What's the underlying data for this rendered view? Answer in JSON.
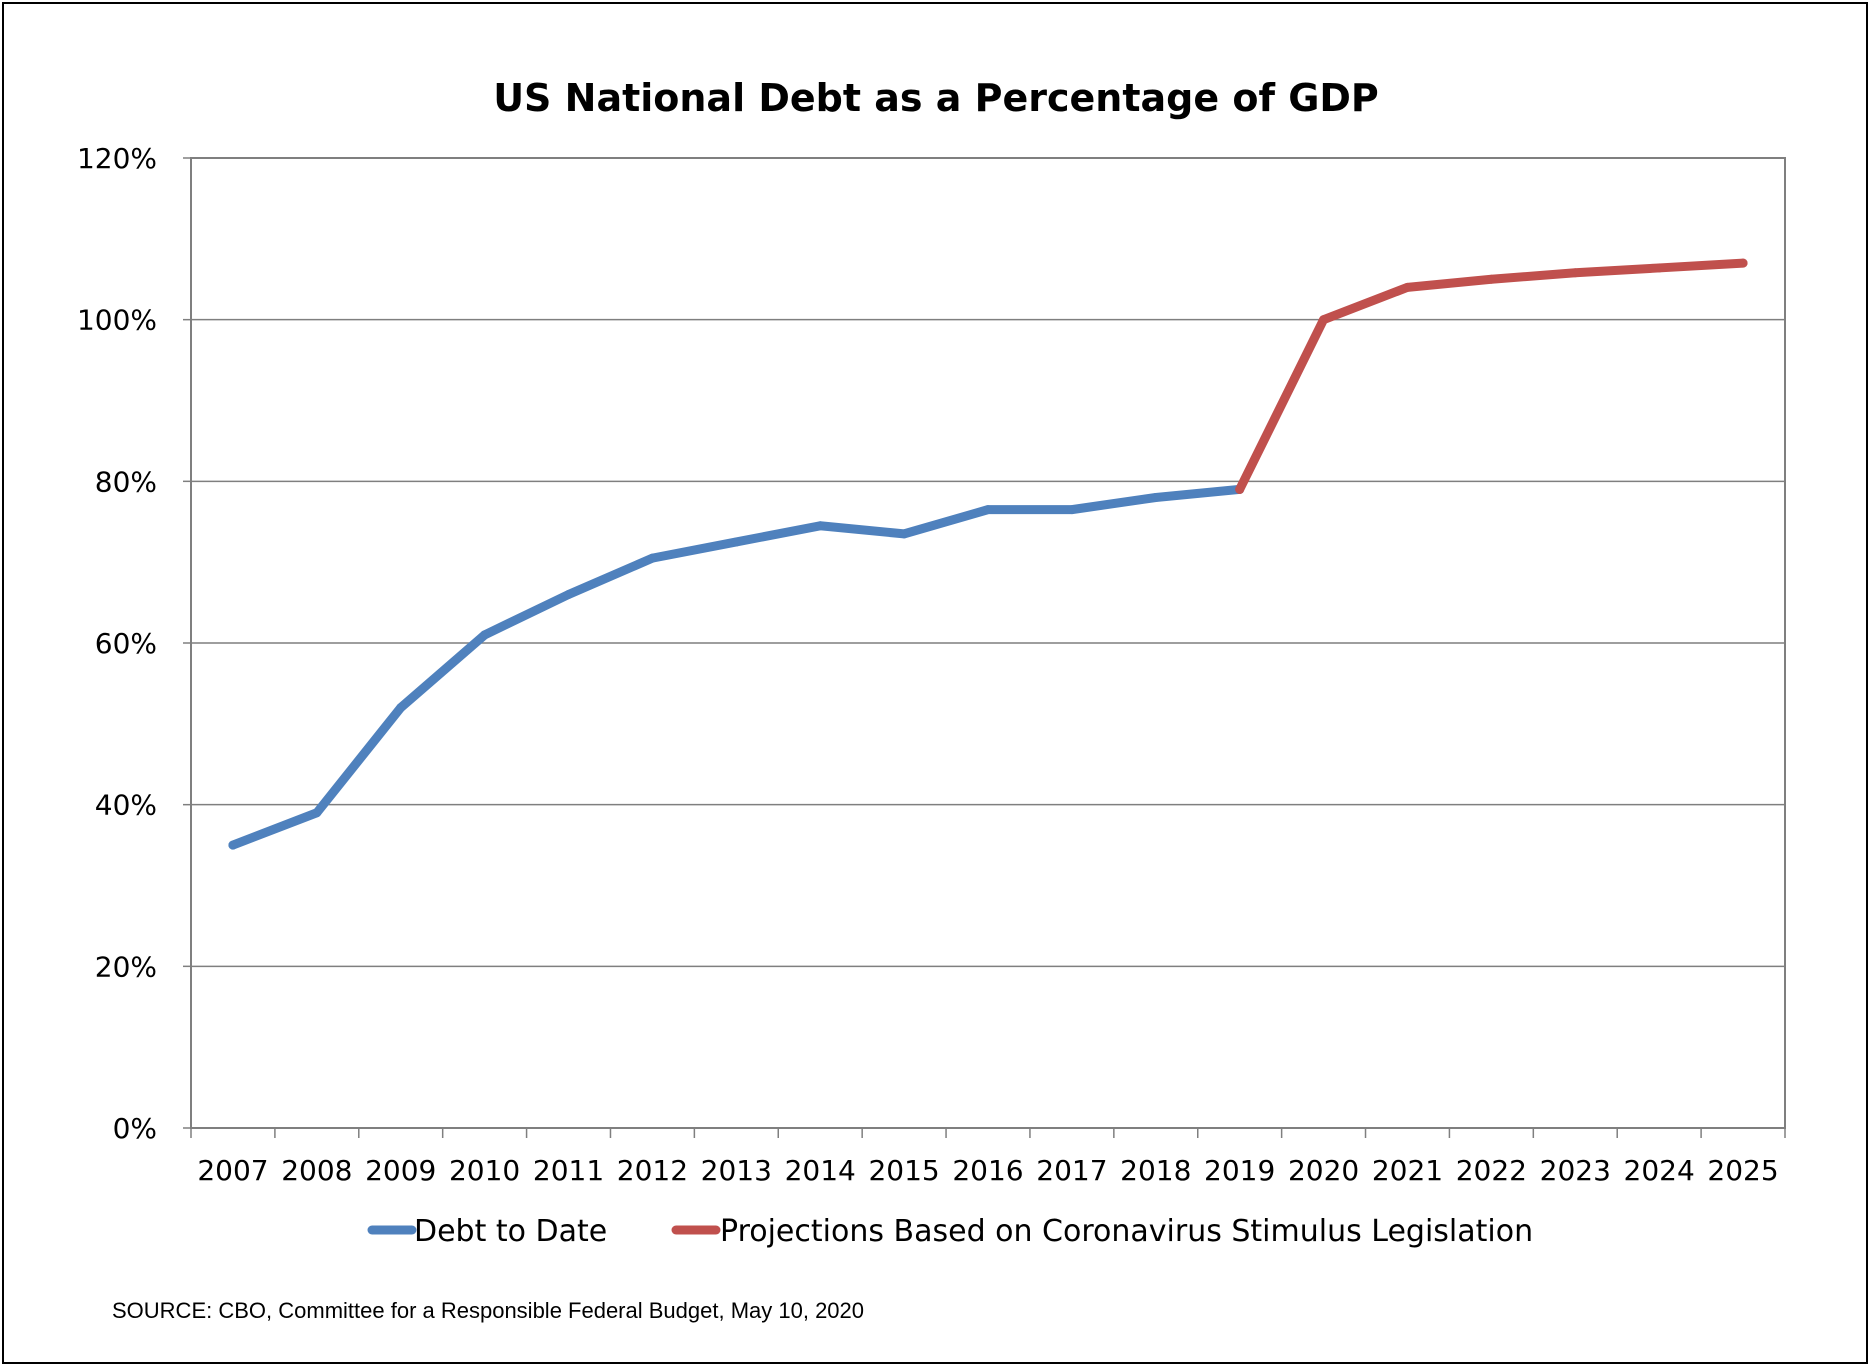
{
  "chart_data": {
    "type": "line",
    "title": "US National Debt as a Percentage of GDP",
    "xlabel": "",
    "ylabel": "",
    "categories": [
      "2007",
      "2008",
      "2009",
      "2010",
      "2011",
      "2012",
      "2013",
      "2014",
      "2015",
      "2016",
      "2017",
      "2018",
      "2019",
      "2020",
      "2021",
      "2022",
      "2023",
      "2024",
      "2025"
    ],
    "y_tick_labels": [
      "0%",
      "20%",
      "40%",
      "60%",
      "80%",
      "100%",
      "120%"
    ],
    "y_ticks": [
      0,
      20,
      40,
      60,
      80,
      100,
      120
    ],
    "ylim": [
      0,
      120
    ],
    "grid": true,
    "legend_position": "bottom",
    "series": [
      {
        "name": "Debt to Date",
        "color": "#4F81BD",
        "values": [
          35,
          39,
          52,
          61,
          66,
          70.5,
          72.5,
          74.5,
          73.5,
          76.5,
          76.5,
          78,
          79,
          null,
          null,
          null,
          null,
          null,
          null
        ]
      },
      {
        "name": "Projections Based on Coronavirus Stimulus Legislation",
        "color": "#C0504D",
        "values": [
          null,
          null,
          null,
          null,
          null,
          null,
          null,
          null,
          null,
          null,
          null,
          null,
          79,
          100,
          104,
          105,
          105.8,
          106.4,
          107
        ]
      }
    ],
    "source": "SOURCE: CBO, Committee for a Responsible Federal Budget, May 10, 2020"
  }
}
